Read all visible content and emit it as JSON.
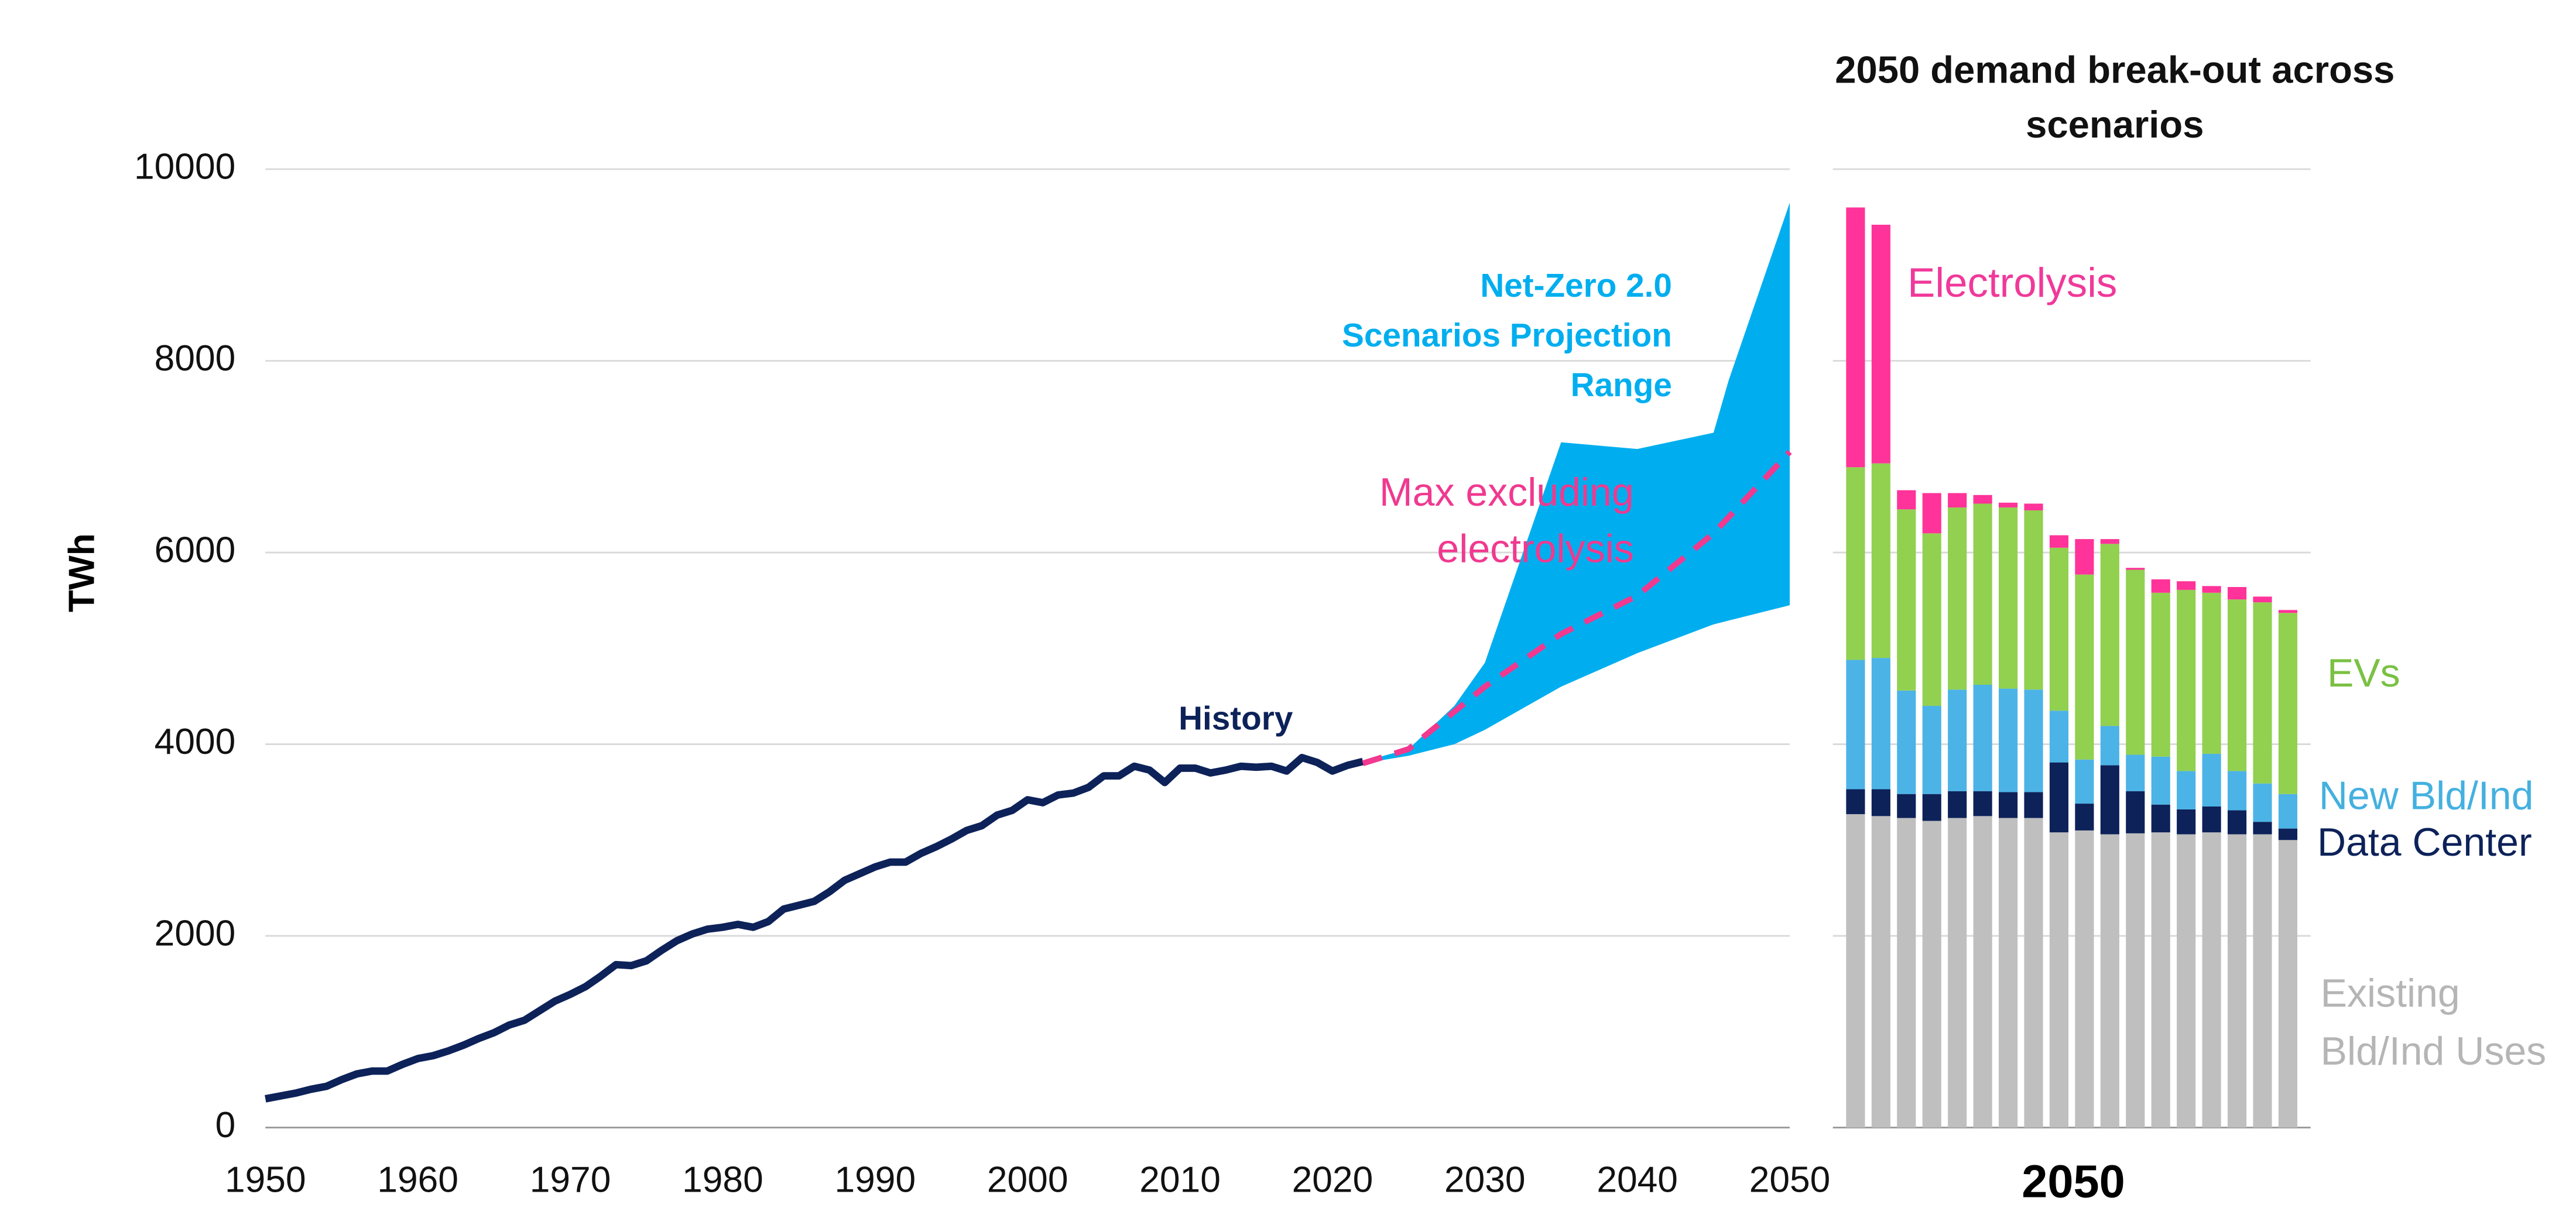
{
  "chart_data": [
    {
      "type": "line",
      "ylabel": "TWh",
      "xlim": [
        1950,
        2050
      ],
      "xticks": [
        1950,
        1960,
        1970,
        1980,
        1990,
        2000,
        2010,
        2020,
        2030,
        2040,
        2050
      ],
      "ylim": [
        0,
        10000
      ],
      "yticks": [
        0,
        2000,
        4000,
        6000,
        8000,
        10000
      ],
      "grid": true,
      "series": [
        {
          "name": "History",
          "color": "#0d2259",
          "style": "line",
          "x": [
            1950,
            1951,
            1952,
            1953,
            1954,
            1955,
            1956,
            1957,
            1958,
            1959,
            1960,
            1961,
            1962,
            1963,
            1964,
            1965,
            1966,
            1967,
            1968,
            1969,
            1970,
            1971,
            1972,
            1973,
            1974,
            1975,
            1976,
            1977,
            1978,
            1979,
            1980,
            1981,
            1982,
            1983,
            1984,
            1985,
            1986,
            1987,
            1988,
            1989,
            1990,
            1991,
            1992,
            1993,
            1994,
            1995,
            1996,
            1997,
            1998,
            1999,
            2000,
            2001,
            2002,
            2003,
            2004,
            2005,
            2006,
            2007,
            2008,
            2009,
            2010,
            2011,
            2012,
            2013,
            2014,
            2015,
            2016,
            2017,
            2018,
            2019,
            2020,
            2021,
            2022
          ],
          "values": [
            300,
            330,
            360,
            400,
            430,
            500,
            560,
            590,
            590,
            660,
            720,
            750,
            800,
            860,
            930,
            990,
            1070,
            1120,
            1220,
            1320,
            1390,
            1470,
            1580,
            1700,
            1690,
            1740,
            1850,
            1950,
            2020,
            2070,
            2090,
            2120,
            2090,
            2150,
            2280,
            2320,
            2360,
            2460,
            2580,
            2650,
            2720,
            2770,
            2770,
            2860,
            2930,
            3010,
            3100,
            3150,
            3260,
            3310,
            3420,
            3390,
            3470,
            3490,
            3550,
            3670,
            3670,
            3770,
            3730,
            3600,
            3750,
            3750,
            3700,
            3730,
            3770,
            3760,
            3770,
            3720,
            3860,
            3810,
            3720,
            3780,
            3820
          ]
        },
        {
          "name": "Net-Zero 2.0 Scenarios Projection Range",
          "color": "#00aeef",
          "style": "band",
          "x": [
            2022,
            2025,
            2028,
            2030,
            2035,
            2040,
            2045,
            2046,
            2050
          ],
          "high": [
            3820,
            3950,
            4400,
            4850,
            7150,
            7080,
            7250,
            7800,
            9650
          ],
          "low": [
            3800,
            3880,
            4000,
            4150,
            4600,
            4950,
            5250,
            5290,
            5450
          ]
        },
        {
          "name": "Max excluding electrolysis",
          "color": "#f0398f",
          "style": "dashed",
          "x": [
            2022,
            2025,
            2030,
            2035,
            2040,
            2045,
            2050
          ],
          "values": [
            3800,
            3950,
            4600,
            5150,
            5550,
            6200,
            7050
          ]
        }
      ]
    },
    {
      "type": "stacked_bar",
      "title": "2050 demand break-out across scenarios",
      "xlabel": "2050",
      "categories": [
        null,
        null,
        null,
        null,
        null,
        null,
        null,
        null,
        null,
        null,
        null,
        null,
        null,
        null,
        null,
        null,
        null,
        null
      ],
      "ylim": [
        0,
        10000
      ],
      "series": [
        {
          "name": "Existing Bld/Ind Uses",
          "color": "#bfbfbf",
          "values": [
            3270,
            3250,
            3230,
            3200,
            3230,
            3250,
            3230,
            3230,
            3080,
            3100,
            3060,
            3070,
            3080,
            3060,
            3080,
            3060,
            3060,
            3000
          ]
        },
        {
          "name": "Data Center",
          "color": "#0d2259",
          "values": [
            260,
            280,
            250,
            280,
            280,
            260,
            270,
            270,
            730,
            280,
            720,
            440,
            290,
            260,
            270,
            250,
            130,
            120
          ]
        },
        {
          "name": "New Bld/Ind",
          "color": "#4cb3e6",
          "values": [
            1350,
            1370,
            1080,
            920,
            1060,
            1110,
            1080,
            1070,
            540,
            460,
            410,
            380,
            500,
            400,
            550,
            410,
            400,
            360
          ]
        },
        {
          "name": "EVs",
          "color": "#92d050",
          "values": [
            2010,
            2030,
            1890,
            1800,
            1900,
            1890,
            1890,
            1870,
            1700,
            1930,
            1900,
            1930,
            1710,
            1890,
            1680,
            1790,
            1890,
            1890
          ]
        },
        {
          "name": "Electrolysis",
          "color": "#ff3399",
          "values": [
            2710,
            2490,
            200,
            420,
            150,
            90,
            50,
            70,
            130,
            370,
            50,
            20,
            140,
            90,
            70,
            130,
            60,
            30
          ]
        }
      ]
    }
  ]
}
